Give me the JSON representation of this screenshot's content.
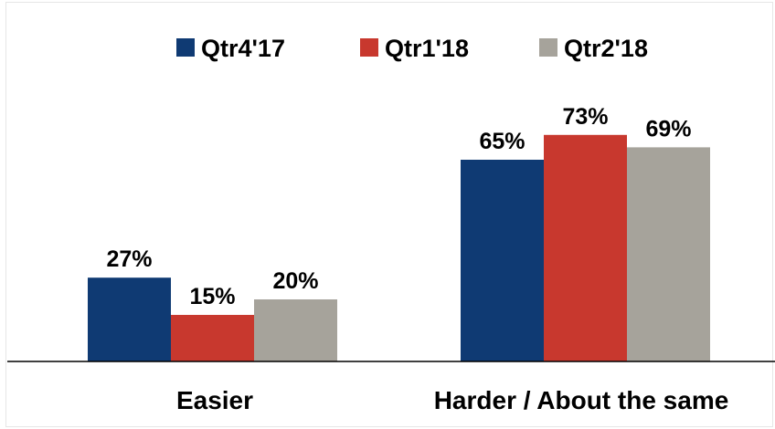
{
  "chart_data": {
    "type": "bar",
    "title": "",
    "xlabel": "",
    "ylabel": "",
    "categories": [
      "Easier",
      "Harder / About the same"
    ],
    "series": [
      {
        "name": "Qtr4'17",
        "values": [
          27,
          65
        ],
        "labels": [
          "27%",
          "65%"
        ],
        "color": "#0f3a73"
      },
      {
        "name": "Qtr1'18",
        "values": [
          15,
          73
        ],
        "labels": [
          "15%",
          "73%"
        ],
        "color": "#c8382e"
      },
      {
        "name": "Qtr2'18",
        "values": [
          20,
          69
        ],
        "labels": [
          "20%",
          "69%"
        ],
        "color": "#a6a39b"
      }
    ],
    "ylim": [
      0,
      100
    ],
    "unit": "%",
    "grid": false,
    "legend_position": "top"
  }
}
